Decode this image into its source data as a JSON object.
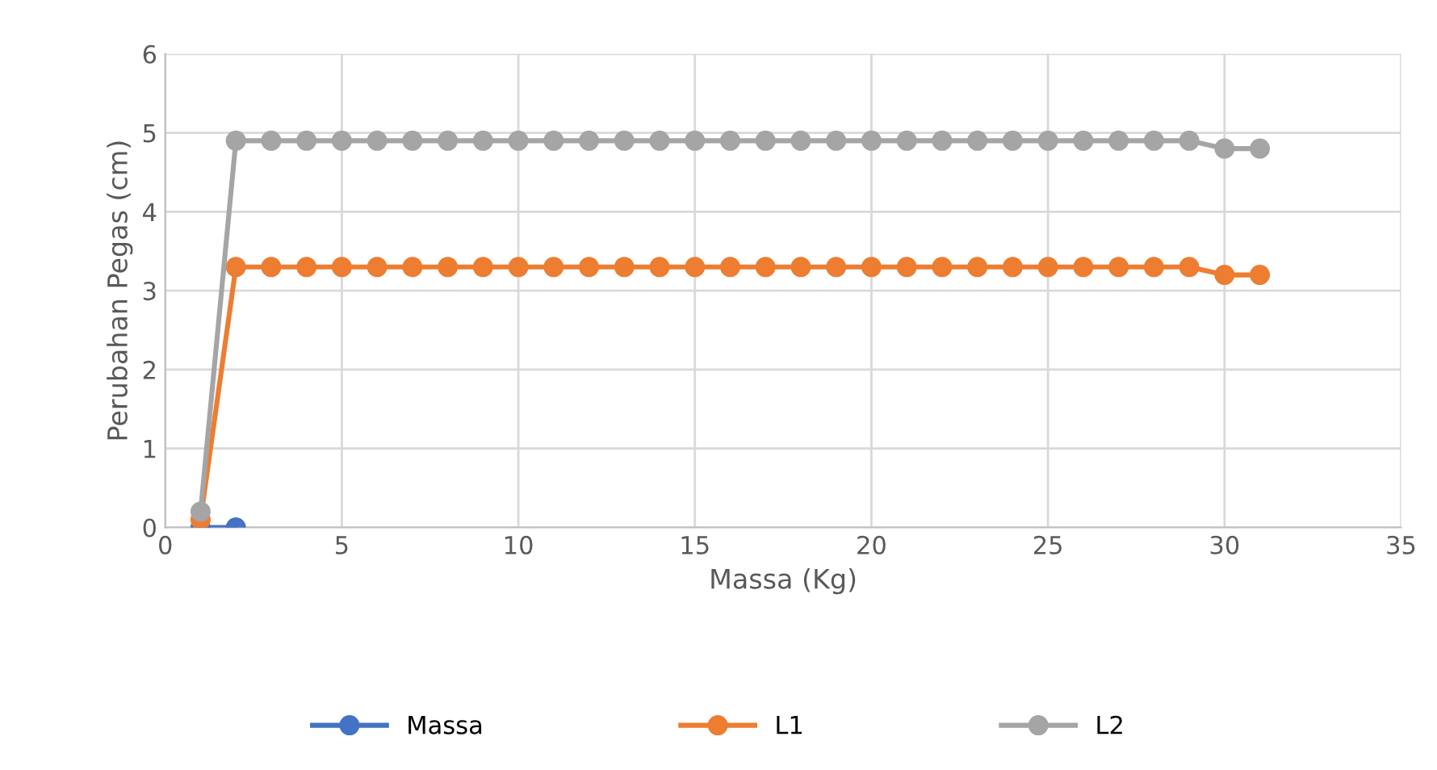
{
  "chart_data": {
    "type": "line",
    "xlabel": "Massa (Kg)",
    "ylabel": "Perubahan Pegas (cm)",
    "x": [
      1,
      2,
      3,
      4,
      5,
      6,
      7,
      8,
      9,
      10,
      11,
      12,
      13,
      14,
      15,
      16,
      17,
      18,
      19,
      20,
      21,
      22,
      23,
      24,
      25,
      26,
      27,
      28,
      29,
      30,
      31
    ],
    "series": [
      {
        "name": "Massa",
        "color": "#4472c4",
        "x": [
          1,
          2
        ],
        "values": [
          0,
          0
        ]
      },
      {
        "name": "L1",
        "color": "#ed7d31",
        "values": [
          0.1,
          3.3,
          3.3,
          3.3,
          3.3,
          3.3,
          3.3,
          3.3,
          3.3,
          3.3,
          3.3,
          3.3,
          3.3,
          3.3,
          3.3,
          3.3,
          3.3,
          3.3,
          3.3,
          3.3,
          3.3,
          3.3,
          3.3,
          3.3,
          3.3,
          3.3,
          3.3,
          3.3,
          3.3,
          3.2,
          3.2
        ]
      },
      {
        "name": "L2",
        "color": "#a5a5a5",
        "values": [
          0.2,
          4.9,
          4.9,
          4.9,
          4.9,
          4.9,
          4.9,
          4.9,
          4.9,
          4.9,
          4.9,
          4.9,
          4.9,
          4.9,
          4.9,
          4.9,
          4.9,
          4.9,
          4.9,
          4.9,
          4.9,
          4.9,
          4.9,
          4.9,
          4.9,
          4.9,
          4.9,
          4.9,
          4.9,
          4.8,
          4.8
        ]
      }
    ],
    "xlim": [
      0,
      35
    ],
    "xticks": [
      0,
      5,
      10,
      15,
      20,
      25,
      30,
      35
    ],
    "ylim": [
      0,
      6
    ],
    "yticks": [
      0,
      1,
      2,
      3,
      4,
      5,
      6
    ],
    "grid": true,
    "legend": "bottom",
    "marker": "circle",
    "line_style": "solid"
  }
}
